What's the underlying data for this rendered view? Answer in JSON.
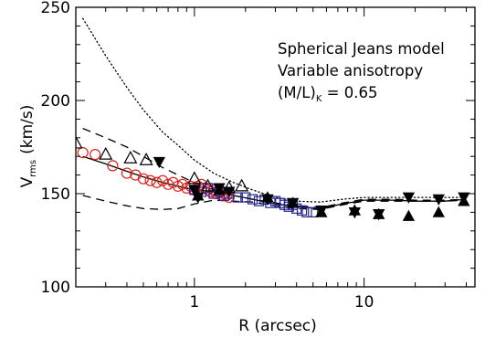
{
  "chart_data": {
    "type": "scatter",
    "title": "",
    "xlabel": "R (arcsec)",
    "ylabel_main": "V",
    "ylabel_sub": "rms",
    "ylabel_unit": "(km/s)",
    "x_scale": "log",
    "xlim": [
      0.2,
      45
    ],
    "ylim": [
      100,
      250
    ],
    "grid": false,
    "x_ticks": [
      {
        "value": 1,
        "label": "1"
      },
      {
        "value": 10,
        "label": "10"
      }
    ],
    "y_ticks": [
      {
        "value": 100,
        "label": "100"
      },
      {
        "value": 150,
        "label": "150"
      },
      {
        "value": 200,
        "label": "200"
      },
      {
        "value": 250,
        "label": "250"
      }
    ],
    "annotations": [
      {
        "text": "Spherical Jeans model"
      },
      {
        "text": "Variable anisotropy"
      },
      {
        "text_main": "(M/L)",
        "text_sub": "K",
        "text_rest": " = 0.65"
      }
    ],
    "series": [
      {
        "style": "dotted-line",
        "color": "#000000",
        "x": [
          0.22,
          0.3,
          0.4,
          0.5,
          0.65,
          0.8,
          1.0,
          1.3,
          1.7,
          2.2,
          3.0,
          4.0,
          5.5,
          7.5,
          10,
          15,
          20,
          30,
          40
        ],
        "y": [
          244,
          224,
          207,
          195,
          183,
          176,
          168,
          161,
          156,
          152,
          148,
          146,
          145.5,
          147,
          148,
          148,
          148,
          148,
          148
        ]
      },
      {
        "style": "dashed-line",
        "color": "#000000",
        "x": [
          0.22,
          0.3,
          0.4,
          0.5,
          0.65,
          0.8,
          1.0,
          1.3,
          1.7,
          2.2,
          3.0,
          4.0,
          5.5,
          7.5,
          10,
          15,
          20,
          30,
          40
        ],
        "y": [
          185,
          180,
          175,
          170,
          164,
          160,
          156,
          152,
          149,
          147,
          145,
          143.5,
          142.5,
          145,
          147,
          147,
          146.5,
          146.5,
          147
        ]
      },
      {
        "style": "solid-line",
        "color": "#000000",
        "x": [
          0.22,
          0.3,
          0.4,
          0.5,
          0.65,
          0.8,
          1.0,
          1.3,
          1.7,
          2.2,
          3.0,
          4.0,
          5.5,
          7.5,
          10,
          15,
          20,
          30,
          40
        ],
        "y": [
          170,
          166,
          162,
          159,
          156,
          154,
          152,
          151,
          149,
          147,
          144.5,
          143,
          142,
          144.5,
          146.5,
          146.5,
          146,
          146,
          147
        ]
      },
      {
        "style": "dashed-line",
        "color": "#000000",
        "x": [
          0.22,
          0.3,
          0.4,
          0.5,
          0.65,
          0.8,
          1.0,
          1.3,
          1.7,
          2.2,
          3.0,
          4.0,
          5.5,
          7.5,
          10,
          15,
          20,
          30,
          40
        ],
        "y": [
          149,
          146,
          143.5,
          142,
          141.5,
          142,
          144.5,
          146.5,
          146,
          145.5,
          143.5,
          142,
          141.5,
          144,
          146,
          146,
          146,
          146,
          146.5
        ]
      },
      {
        "marker": "open-circle",
        "color": "#e0201b",
        "x": [
          0.22,
          0.26,
          0.33,
          0.4,
          0.45,
          0.5,
          0.55,
          0.6,
          0.65,
          0.7,
          0.75,
          0.8,
          0.85,
          0.9,
          0.95,
          1.0,
          1.05,
          1.1,
          1.15,
          1.2,
          1.25,
          1.3,
          1.35,
          1.4,
          1.45,
          1.5,
          1.55,
          1.6
        ],
        "y": [
          172,
          171,
          165,
          161,
          160,
          158,
          157,
          156,
          157,
          155,
          156,
          154,
          155,
          153,
          154,
          152,
          154,
          155,
          153,
          152,
          151,
          152,
          150,
          151,
          149,
          150,
          149,
          148
        ]
      },
      {
        "marker": "open-square",
        "color": "#23238e",
        "x": [
          1.0,
          1.1,
          1.2,
          1.3,
          1.4,
          1.5,
          1.6,
          1.8,
          2.0,
          2.2,
          2.4,
          2.6,
          2.8,
          3.0,
          3.2,
          3.4,
          3.6,
          3.8,
          4.0,
          4.3,
          4.6,
          5.0
        ],
        "y": [
          152,
          151,
          153,
          150,
          151,
          149,
          150,
          148,
          148,
          147,
          146,
          147,
          145,
          146,
          145,
          144,
          143,
          144,
          142,
          141,
          140,
          140
        ]
      },
      {
        "marker": "open-triangle-up",
        "color": "#000000",
        "x": [
          0.2,
          0.3,
          0.42,
          0.52,
          1.0,
          1.2,
          1.6,
          1.9
        ],
        "y": [
          177,
          171,
          169,
          168,
          158,
          154,
          153,
          154
        ]
      },
      {
        "marker": "filled-triangle-down",
        "color": "#000000",
        "x": [
          0.62,
          1.0,
          1.05,
          1.4,
          1.6,
          2.7,
          3.8,
          5.6,
          8.8,
          12.2,
          18.3,
          27.5,
          38.7
        ],
        "y": [
          167,
          152,
          148,
          153,
          151,
          147,
          145,
          141,
          140,
          139,
          148,
          147,
          148
        ]
      },
      {
        "marker": "filled-triangle-up",
        "color": "#000000",
        "x": [
          1.05,
          1.4,
          2.7,
          3.8,
          5.6,
          8.8,
          12.2,
          18.3,
          27.5,
          38.7
        ],
        "y": [
          149,
          152,
          148,
          145,
          140,
          141,
          139,
          138,
          140,
          146
        ]
      }
    ]
  }
}
